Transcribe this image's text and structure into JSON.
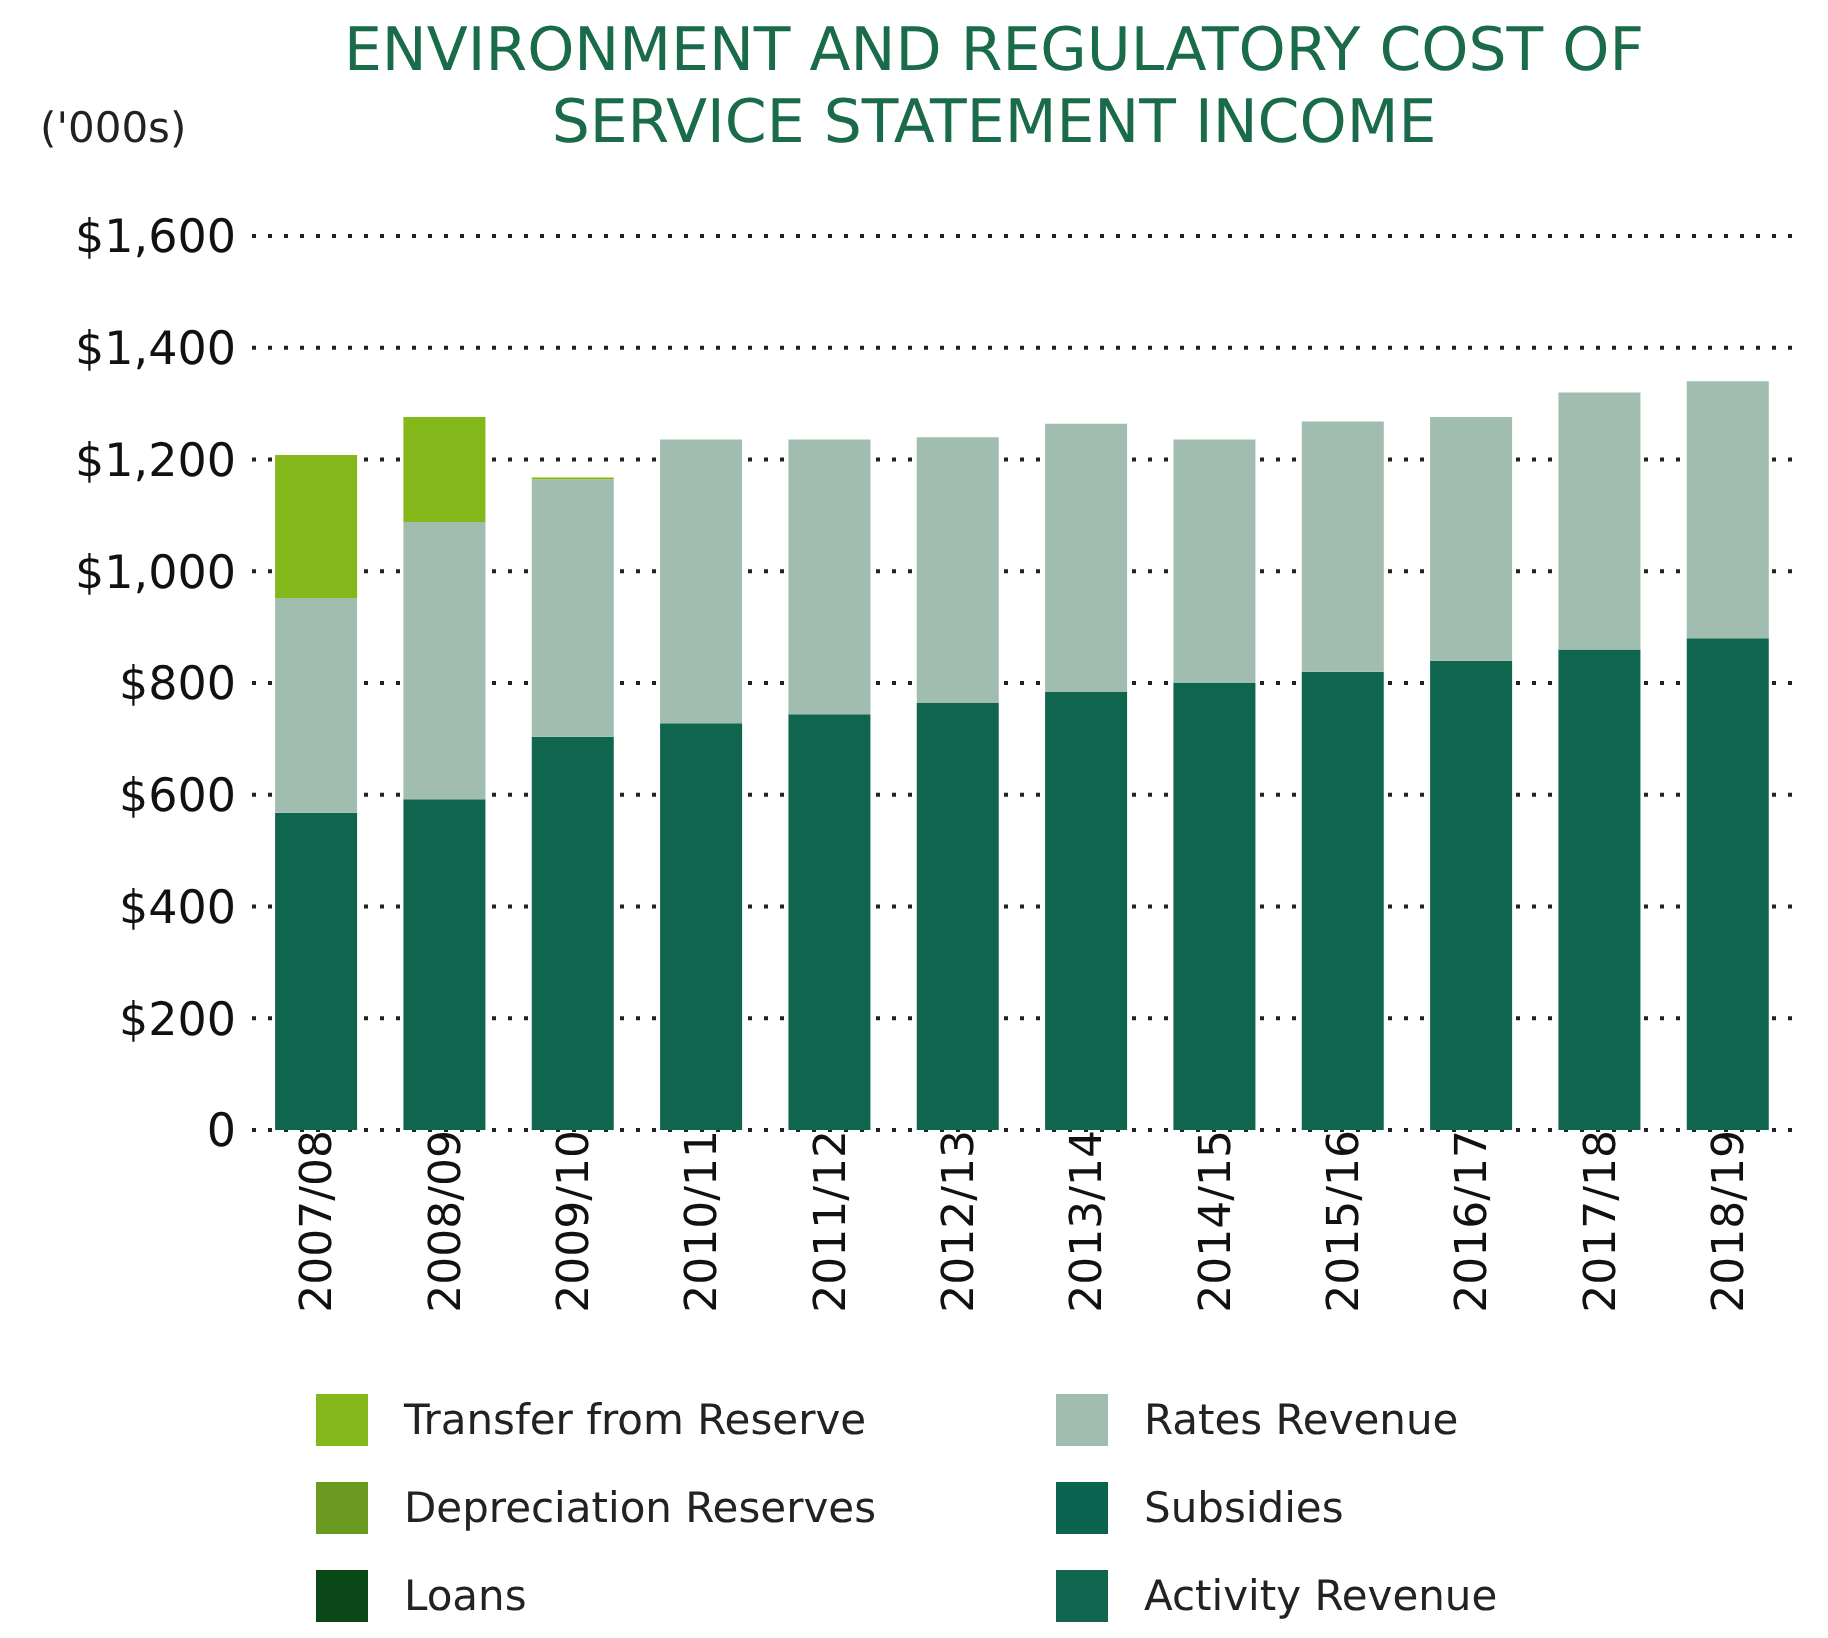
{
  "chart_data": {
    "type": "bar",
    "title": "ENVIRONMENT AND REGULATORY COST OF\nSERVICE STATEMENT INCOME",
    "ylabel": "('000s)",
    "stacked": true,
    "categories": [
      "2007/08",
      "2008/09",
      "2009/10",
      "2010/11",
      "2011/12",
      "2012/13",
      "2013/14",
      "2014/15",
      "2015/16",
      "2016/17",
      "2017/18",
      "2018/19"
    ],
    "series": [
      {
        "name": "Activity Revenue",
        "color": "#10654e",
        "values": [
          568,
          592,
          704,
          728,
          744,
          764,
          784,
          800,
          820,
          840,
          860,
          880
        ]
      },
      {
        "name": "Loans",
        "color": "#0a4818",
        "values": [
          0,
          0,
          0,
          0,
          0,
          0,
          0,
          0,
          0,
          0,
          0,
          0
        ]
      },
      {
        "name": "Subsidies",
        "color": "#0b6450",
        "values": [
          0,
          0,
          0,
          0,
          0,
          0,
          0,
          0,
          0,
          0,
          0,
          0
        ]
      },
      {
        "name": "Depreciation Reserves",
        "color": "#6a9a1f",
        "values": [
          0,
          0,
          0,
          0,
          0,
          0,
          0,
          0,
          0,
          0,
          0,
          0
        ]
      },
      {
        "name": "Rates Revenue",
        "color": "#a1bdaf",
        "values": [
          384,
          496,
          460,
          508,
          492,
          476,
          480,
          436,
          448,
          436,
          460,
          460
        ]
      },
      {
        "name": "Transfer from Reserve",
        "color": "#84b71a",
        "values": [
          256,
          188,
          4,
          0,
          0,
          0,
          0,
          0,
          0,
          0,
          0,
          0
        ]
      }
    ],
    "ylim": [
      0,
      1600
    ],
    "yticks": [
      {
        "value": 0,
        "label": "0"
      },
      {
        "value": 200,
        "label": "$200"
      },
      {
        "value": 400,
        "label": "$400"
      },
      {
        "value": 600,
        "label": "$600"
      },
      {
        "value": 800,
        "label": "$800"
      },
      {
        "value": 1000,
        "label": "$1,000"
      },
      {
        "value": 1200,
        "label": "$1,200"
      },
      {
        "value": 1400,
        "label": "$1,400"
      },
      {
        "value": 1600,
        "label": "$1,600"
      }
    ],
    "grid": "y",
    "legend": "bottom"
  }
}
